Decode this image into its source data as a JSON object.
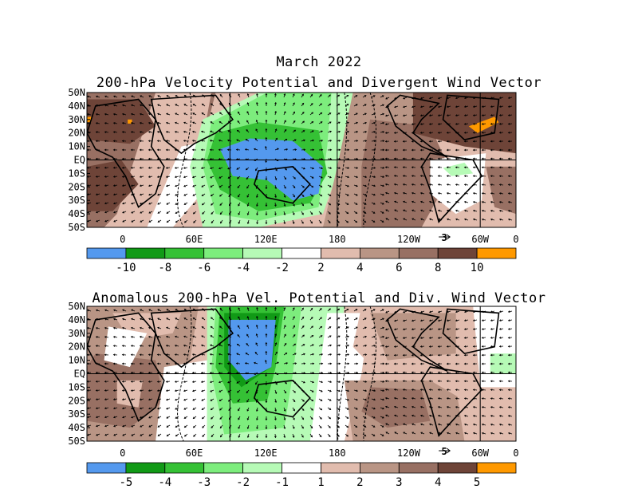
{
  "figure": {
    "title": "March 2022",
    "subtitle": "200-hPa Velocity Potential and Divergent Wind Vector"
  },
  "panels": [
    {
      "id": "total",
      "title": "",
      "lat_labels": [
        "50N",
        "40N",
        "30N",
        "20N",
        "10N",
        "EQ",
        "10S",
        "20S",
        "30S",
        "40S",
        "50S"
      ],
      "lon_labels": [
        "0",
        "60E",
        "120E",
        "180",
        "120W",
        "60W",
        "0"
      ],
      "ref_vector": "3",
      "colorbar": {
        "labels": [
          "-10",
          "-8",
          "-6",
          "-4",
          "-2",
          "2",
          "4",
          "6",
          "8",
          "10"
        ],
        "colors": [
          "#5499ee",
          "#119a16",
          "#35c135",
          "#7ded7d",
          "#b6fab6",
          "#ffffff",
          "#e1bcae",
          "#b99585",
          "#987063",
          "#6e4438",
          "#ff9900"
        ]
      }
    },
    {
      "id": "anomaly",
      "title": "Anomalous 200-hPa Vel. Potential and Div. Wind Vector",
      "lat_labels": [
        "50N",
        "40N",
        "30N",
        "20N",
        "10N",
        "EQ",
        "10S",
        "20S",
        "30S",
        "40S",
        "50S"
      ],
      "lon_labels": [
        "0",
        "60E",
        "120E",
        "180",
        "120W",
        "60W",
        "0"
      ],
      "ref_vector": "5",
      "colorbar": {
        "labels": [
          "-5",
          "-4",
          "-3",
          "-2",
          "-1",
          "1",
          "2",
          "3",
          "4",
          "5"
        ],
        "colors": [
          "#5499ee",
          "#119a16",
          "#35c135",
          "#7ded7d",
          "#b6fab6",
          "#ffffff",
          "#e1bcae",
          "#b99585",
          "#987063",
          "#6e4438",
          "#ff9900"
        ]
      }
    }
  ]
}
